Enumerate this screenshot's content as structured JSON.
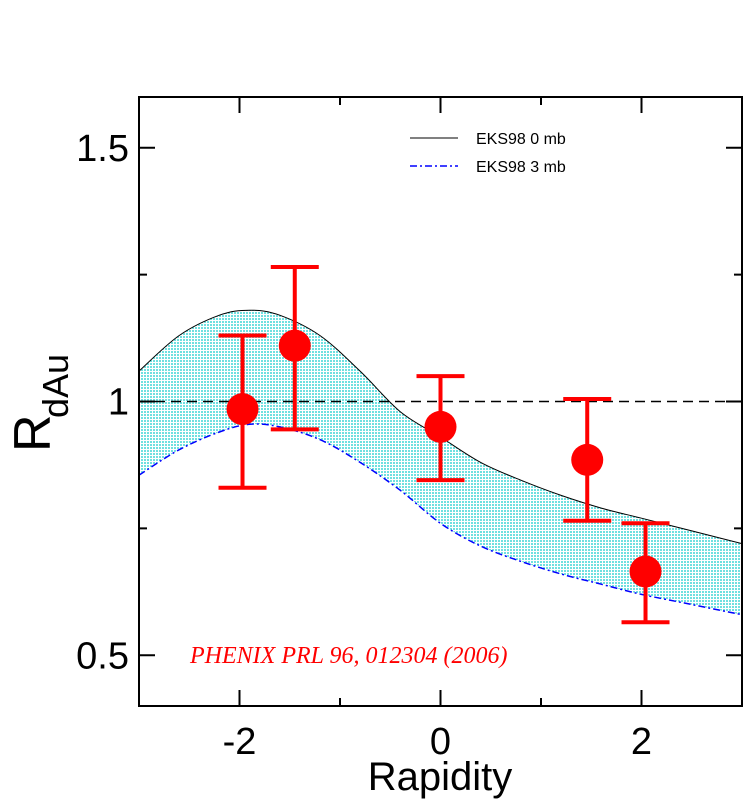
{
  "chart_data": {
    "type": "line",
    "xlabel": "Rapidity",
    "ylabel_main": "R",
    "ylabel_sub": "dAu",
    "xlim": [
      -3,
      3
    ],
    "ylim": [
      0.4,
      1.6
    ],
    "x_ticks": [
      -2,
      0,
      2
    ],
    "x_tick_labels": [
      "-2",
      "0",
      "2"
    ],
    "x_minor_ticks": [
      -3,
      -1,
      1,
      3
    ],
    "y_ticks": [
      0.5,
      1.0,
      1.5
    ],
    "y_tick_labels": [
      "0.5",
      "1",
      "1.5"
    ],
    "y_minor_ticks": [
      0.75,
      1.25
    ],
    "grid": false,
    "reference_line": {
      "y": 1.0,
      "style": "dashed"
    },
    "legend_position": "top-right",
    "legend": [
      {
        "label": "EKS98 0 mb",
        "style": "solid",
        "color": "#000000"
      },
      {
        "label": "EKS98 3 mb",
        "style": "dash-dot",
        "color": "#0000ff"
      }
    ],
    "band_fill_color": "#7fe5e5",
    "series": [
      {
        "name": "EKS98 0 mb",
        "x": [
          -3.0,
          -2.6,
          -2.2,
          -1.9,
          -1.6,
          -1.2,
          -0.8,
          -0.4,
          0.0,
          0.4,
          0.8,
          1.2,
          1.6,
          2.0,
          2.5,
          3.0
        ],
        "y": [
          1.06,
          1.13,
          1.17,
          1.18,
          1.17,
          1.13,
          1.06,
          0.98,
          0.93,
          0.88,
          0.845,
          0.815,
          0.79,
          0.77,
          0.745,
          0.72
        ]
      },
      {
        "name": "EKS98 3 mb",
        "x": [
          -3.0,
          -2.6,
          -2.2,
          -1.9,
          -1.6,
          -1.2,
          -0.8,
          -0.4,
          0.0,
          0.4,
          0.8,
          1.2,
          1.6,
          2.0,
          2.5,
          3.0
        ],
        "y": [
          0.855,
          0.905,
          0.94,
          0.955,
          0.95,
          0.925,
          0.88,
          0.825,
          0.76,
          0.715,
          0.685,
          0.66,
          0.64,
          0.62,
          0.6,
          0.58
        ]
      }
    ],
    "points": {
      "color": "#ff0000",
      "x": [
        -1.97,
        -1.45,
        0.0,
        1.46,
        2.04
      ],
      "y": [
        0.985,
        1.11,
        0.95,
        0.885,
        0.665
      ],
      "err_low": [
        0.83,
        0.945,
        0.845,
        0.765,
        0.565
      ],
      "err_high": [
        1.13,
        1.265,
        1.05,
        1.005,
        0.76
      ]
    },
    "annotation": "PHENIX PRL 96, 012304 (2006)"
  }
}
